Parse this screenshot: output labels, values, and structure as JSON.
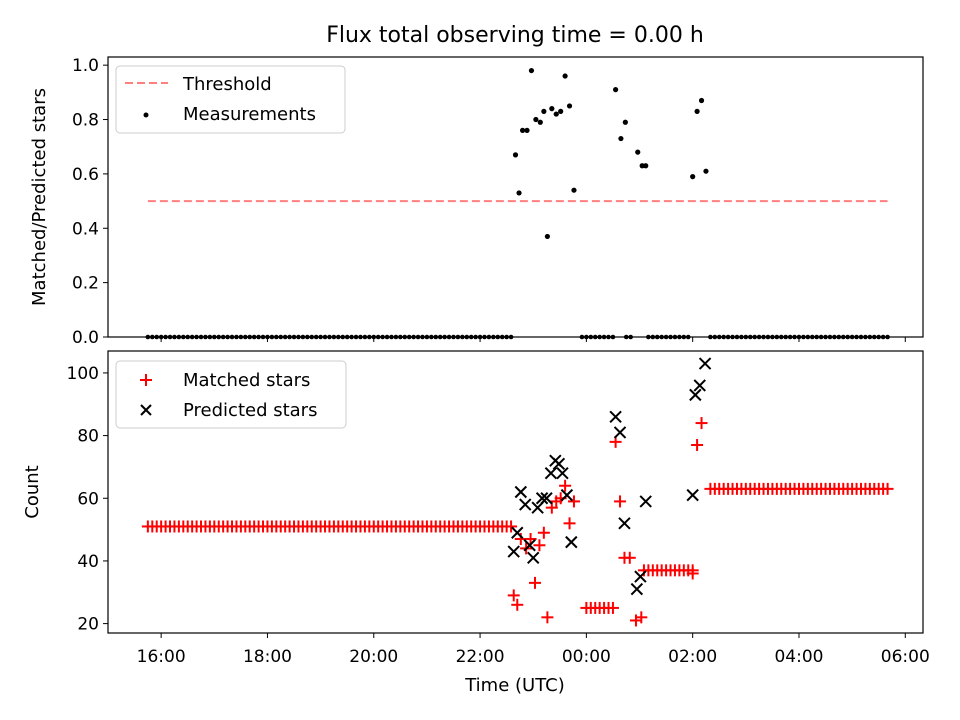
{
  "chart_data": [
    {
      "type": "scatter",
      "title": "Flux total observing time = 0.00 h",
      "xlabel": "",
      "ylabel": "Matched/Predicted stars",
      "xlim": [
        "15:00",
        "06:20"
      ],
      "ylim": [
        0,
        1.03
      ],
      "yticks": [
        "0.0",
        "0.2",
        "0.4",
        "0.6",
        "0.8",
        "1.0"
      ],
      "grid": false,
      "legend": "top-left",
      "threshold": {
        "name": "Threshold",
        "y": 0.5,
        "x_start": "15:45",
        "x_end": "05:40",
        "color": "#ff7f7f"
      },
      "measurements": {
        "name": "Measurements",
        "color": "#000000",
        "zero_runs": [
          [
            "15:45",
            "22:35"
          ],
          [
            "23:55",
            "00:30"
          ],
          [
            "00:45",
            "00:50"
          ],
          [
            "01:10",
            "01:55"
          ],
          [
            "02:20",
            "05:40"
          ]
        ],
        "points": [
          [
            "22:40",
            0.67
          ],
          [
            "22:44",
            0.53
          ],
          [
            "22:48",
            0.76
          ],
          [
            "22:53",
            0.76
          ],
          [
            "22:58",
            0.98
          ],
          [
            "23:03",
            0.8
          ],
          [
            "23:08",
            0.79
          ],
          [
            "23:12",
            0.83
          ],
          [
            "23:16",
            0.37
          ],
          [
            "23:21",
            0.84
          ],
          [
            "23:26",
            0.82
          ],
          [
            "23:31",
            0.83
          ],
          [
            "23:36",
            0.96
          ],
          [
            "23:41",
            0.85
          ],
          [
            "23:46",
            0.54
          ],
          [
            "00:33",
            0.91
          ],
          [
            "00:39",
            0.73
          ],
          [
            "00:44",
            0.79
          ],
          [
            "00:58",
            0.68
          ],
          [
            "01:03",
            0.63
          ],
          [
            "01:07",
            0.63
          ],
          [
            "02:00",
            0.59
          ],
          [
            "02:05",
            0.83
          ],
          [
            "02:10",
            0.87
          ],
          [
            "02:15",
            0.61
          ]
        ]
      }
    },
    {
      "type": "scatter",
      "xlabel": "Time (UTC)",
      "ylabel": "Count",
      "xlim": [
        "15:00",
        "06:20"
      ],
      "ylim": [
        17,
        107
      ],
      "xticks": [
        "16:00",
        "18:00",
        "20:00",
        "22:00",
        "00:00",
        "02:00",
        "04:00",
        "06:00"
      ],
      "yticks": [
        "20",
        "40",
        "60",
        "80",
        "100"
      ],
      "grid": false,
      "legend": "top-left",
      "series": [
        {
          "name": "Matched stars",
          "marker": "plus",
          "color": "#ff0000",
          "constant_runs": [
            [
              "15:45",
              "22:35",
              51
            ],
            [
              "00:00",
              "00:30",
              25
            ],
            [
              "01:05",
              "02:00",
              37
            ],
            [
              "02:20",
              "05:40",
              63
            ]
          ],
          "points": [
            [
              "22:38",
              29
            ],
            [
              "22:42",
              26
            ],
            [
              "22:46",
              47
            ],
            [
              "22:52",
              44
            ],
            [
              "22:57",
              47
            ],
            [
              "23:02",
              33
            ],
            [
              "23:07",
              45
            ],
            [
              "23:12",
              49
            ],
            [
              "23:16",
              22
            ],
            [
              "23:21",
              57
            ],
            [
              "23:26",
              59
            ],
            [
              "23:31",
              60
            ],
            [
              "23:36",
              64
            ],
            [
              "23:41",
              52
            ],
            [
              "23:46",
              59
            ],
            [
              "00:33",
              78
            ],
            [
              "00:38",
              59
            ],
            [
              "00:43",
              41
            ],
            [
              "00:49",
              41
            ],
            [
              "00:56",
              21
            ],
            [
              "01:02",
              22
            ],
            [
              "02:00",
              36
            ],
            [
              "02:05",
              77
            ],
            [
              "02:10",
              84
            ]
          ]
        },
        {
          "name": "Predicted stars",
          "marker": "x",
          "color": "#000000",
          "points": [
            [
              "22:38",
              43
            ],
            [
              "22:42",
              49
            ],
            [
              "22:46",
              62
            ],
            [
              "22:51",
              58
            ],
            [
              "22:56",
              45
            ],
            [
              "23:00",
              41
            ],
            [
              "23:05",
              57
            ],
            [
              "23:10",
              60
            ],
            [
              "23:15",
              60
            ],
            [
              "23:20",
              68
            ],
            [
              "23:25",
              72
            ],
            [
              "23:29",
              71
            ],
            [
              "23:33",
              68
            ],
            [
              "23:38",
              61
            ],
            [
              "23:43",
              46
            ],
            [
              "00:33",
              86
            ],
            [
              "00:38",
              81
            ],
            [
              "00:43",
              52
            ],
            [
              "00:57",
              31
            ],
            [
              "01:01",
              35
            ],
            [
              "01:07",
              59
            ],
            [
              "02:00",
              61
            ],
            [
              "02:03",
              93
            ],
            [
              "02:08",
              96
            ],
            [
              "02:14",
              103
            ]
          ]
        }
      ]
    }
  ]
}
